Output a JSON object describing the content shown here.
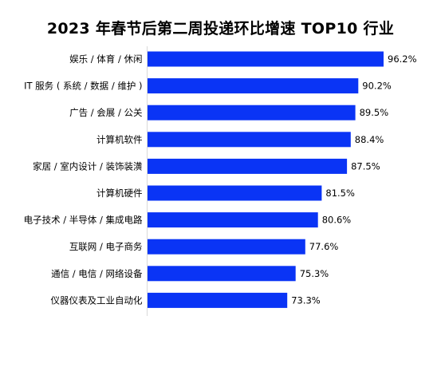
{
  "chart_data": {
    "type": "bar",
    "orientation": "horizontal",
    "title": "2023 年春节后第二周投递环比增速 TOP10 行业",
    "categories": [
      "娱乐 / 体育 / 休闲",
      "IT 服务 ( 系统 / 数据 / 维护 )",
      "广告 / 会展 / 公关",
      "计算机软件",
      "家居 / 室内设计 / 装饰装潢",
      "计算机硬件",
      "电子技术 / 半导体 / 集成电路",
      "互联网 / 电子商务",
      "通信 / 电信 / 网络设备",
      "仪器仪表及工业自动化"
    ],
    "values": [
      96.2,
      90.2,
      89.5,
      88.4,
      87.5,
      81.5,
      80.6,
      77.6,
      75.3,
      73.3
    ],
    "value_labels": [
      "96.2%",
      "90.2%",
      "89.5%",
      "88.4%",
      "87.5%",
      "81.5%",
      "80.6%",
      "77.6%",
      "75.3%",
      "73.3%"
    ],
    "xlabel": "",
    "ylabel": "",
    "xlim": [
      40,
      100
    ],
    "bar_color": "#0a34f5",
    "axis_color": "#d9d9d9",
    "grid": false,
    "legend": "none"
  }
}
